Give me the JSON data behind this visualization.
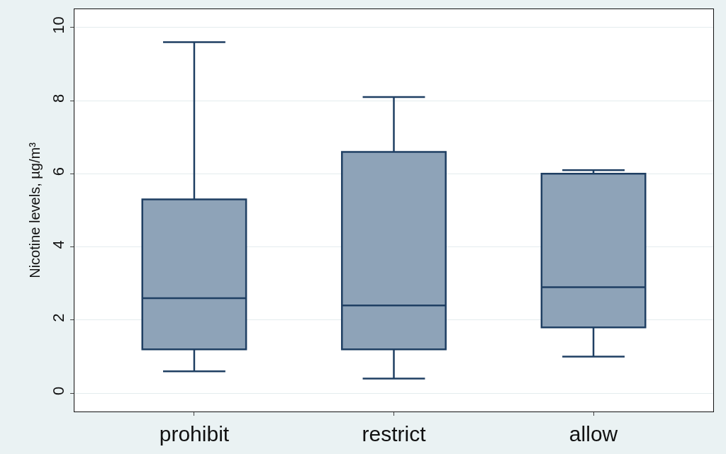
{
  "chart_data": {
    "type": "box",
    "ylabel": "Nicotine levels, µg/m³",
    "categories": [
      "prohibit",
      "restrict",
      "allow"
    ],
    "boxes": [
      {
        "low": 0.6,
        "q1": 1.2,
        "median": 2.6,
        "q3": 5.3,
        "high": 9.6
      },
      {
        "low": 0.4,
        "q1": 1.2,
        "median": 2.4,
        "q3": 6.6,
        "high": 8.1
      },
      {
        "low": 1.0,
        "q1": 1.8,
        "median": 2.9,
        "q3": 6.0,
        "high": 6.1
      }
    ],
    "color": "#8ea3b8",
    "ylim": [
      -0.5,
      10.5
    ],
    "yticks": [
      0,
      2,
      4,
      6,
      8,
      10
    ],
    "grid": "y"
  }
}
